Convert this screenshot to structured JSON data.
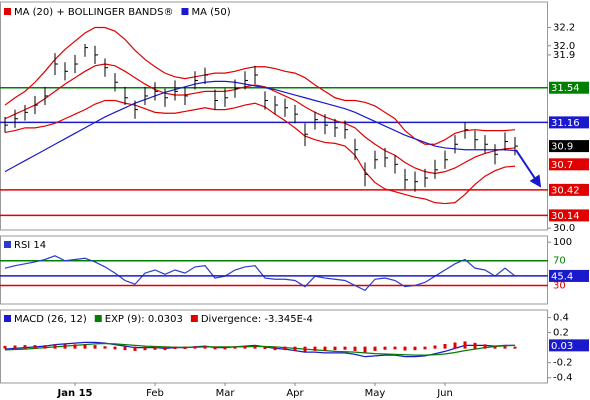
{
  "chart_data": [
    {
      "type": "ohlc",
      "ylim": [
        29.98,
        32.48
      ],
      "yticks": [
        {
          "value": 30.0,
          "label": "30.0"
        },
        31.9,
        {
          "value": 32.0,
          "label": "32.0"
        },
        32.2
      ],
      "bar_color": "#000000",
      "high": [
        31.22,
        31.3,
        31.35,
        31.45,
        31.55,
        31.92,
        31.82,
        31.9,
        32.02,
        32.0,
        31.86,
        31.7,
        31.55,
        31.4,
        31.55,
        31.6,
        31.53,
        31.62,
        31.55,
        31.72,
        31.76,
        31.52,
        31.53,
        31.63,
        31.72,
        31.78,
        31.5,
        31.45,
        31.42,
        31.35,
        31.15,
        31.28,
        31.25,
        31.2,
        31.18,
        30.98,
        30.72,
        30.85,
        30.88,
        30.8,
        30.65,
        30.62,
        30.65,
        30.75,
        30.85,
        31.02,
        31.16,
        31.07,
        31.02,
        30.92,
        31.05,
        31.0
      ],
      "low": [
        31.05,
        31.1,
        31.18,
        31.25,
        31.35,
        31.68,
        31.62,
        31.7,
        31.88,
        31.8,
        31.66,
        31.5,
        31.35,
        31.2,
        31.35,
        31.4,
        31.33,
        31.4,
        31.35,
        31.52,
        31.58,
        31.3,
        31.33,
        31.43,
        31.52,
        31.58,
        31.3,
        31.25,
        31.22,
        31.15,
        30.9,
        31.08,
        31.03,
        31.0,
        30.98,
        30.75,
        30.46,
        30.65,
        30.67,
        30.6,
        30.43,
        30.4,
        30.45,
        30.54,
        30.65,
        30.82,
        30.98,
        30.87,
        30.82,
        30.7,
        30.85,
        30.8
      ],
      "close": [
        31.13,
        31.2,
        31.27,
        31.35,
        31.45,
        31.8,
        31.72,
        31.8,
        31.98,
        31.9,
        31.76,
        31.6,
        31.43,
        31.3,
        31.45,
        31.5,
        31.43,
        31.5,
        31.45,
        31.62,
        31.68,
        31.4,
        31.43,
        31.53,
        31.62,
        31.68,
        31.4,
        31.35,
        31.32,
        31.25,
        31.03,
        31.19,
        31.13,
        31.1,
        31.08,
        30.86,
        30.59,
        30.75,
        30.77,
        30.7,
        30.53,
        30.51,
        30.55,
        30.64,
        30.75,
        30.92,
        31.08,
        30.97,
        30.92,
        30.81,
        30.95,
        30.9
      ],
      "series": [
        {
          "name": "MA (20) + BOLLINGER BANDS®",
          "color": "#e00000",
          "values": [
            31.2,
            31.25,
            31.3,
            31.35,
            31.42,
            31.5,
            31.58,
            31.65,
            31.72,
            31.78,
            31.8,
            31.78,
            31.72,
            31.65,
            31.58,
            31.52,
            31.48,
            31.46,
            31.46,
            31.48,
            31.5,
            31.5,
            31.5,
            31.52,
            31.55,
            31.57,
            31.55,
            31.5,
            31.45,
            31.4,
            31.33,
            31.27,
            31.22,
            31.18,
            31.15,
            31.1,
            31.0,
            30.92,
            30.85,
            30.8,
            30.72,
            30.66,
            30.62,
            30.6,
            30.62,
            30.66,
            30.72,
            30.78,
            30.82,
            30.85,
            30.87,
            30.88
          ]
        },
        {
          "color": "#e00000",
          "values": [
            31.35,
            31.43,
            31.5,
            31.6,
            31.72,
            31.85,
            31.96,
            32.05,
            32.14,
            32.2,
            32.2,
            32.16,
            32.07,
            31.95,
            31.85,
            31.77,
            31.7,
            31.66,
            31.64,
            31.66,
            31.68,
            31.7,
            31.7,
            31.72,
            31.75,
            31.77,
            31.77,
            31.75,
            31.72,
            31.7,
            31.65,
            31.57,
            31.5,
            31.43,
            31.4,
            31.4,
            31.38,
            31.34,
            31.27,
            31.2,
            31.07,
            30.98,
            30.92,
            30.92,
            30.97,
            31.04,
            31.07,
            31.08,
            31.07,
            31.07,
            31.07,
            31.08
          ]
        },
        {
          "color": "#e00000",
          "values": [
            31.05,
            31.07,
            31.1,
            31.1,
            31.12,
            31.15,
            31.2,
            31.25,
            31.3,
            31.36,
            31.4,
            31.4,
            31.37,
            31.35,
            31.31,
            31.27,
            31.26,
            31.26,
            31.28,
            31.3,
            31.32,
            31.3,
            31.3,
            31.32,
            31.35,
            31.37,
            31.33,
            31.25,
            31.18,
            31.1,
            31.01,
            30.97,
            30.94,
            30.93,
            30.9,
            30.8,
            30.62,
            30.5,
            30.43,
            30.4,
            30.37,
            30.34,
            30.32,
            30.28,
            30.27,
            30.28,
            30.37,
            30.48,
            30.57,
            30.63,
            30.67,
            30.68
          ]
        },
        {
          "name": "MA (50)",
          "color": "#1a1acc",
          "values": [
            30.62,
            30.68,
            30.74,
            30.8,
            30.86,
            30.92,
            30.98,
            31.04,
            31.1,
            31.16,
            31.22,
            31.27,
            31.32,
            31.37,
            31.41,
            31.45,
            31.49,
            31.52,
            31.55,
            31.58,
            31.6,
            31.61,
            31.61,
            31.6,
            31.58,
            31.56,
            31.54,
            31.52,
            31.49,
            31.46,
            31.43,
            31.4,
            31.37,
            31.34,
            31.31,
            31.27,
            31.22,
            31.17,
            31.12,
            31.07,
            31.02,
            30.98,
            30.94,
            30.9,
            30.88,
            30.87,
            30.86,
            30.86,
            30.86,
            30.86,
            30.86,
            30.85
          ]
        }
      ],
      "levels": [
        {
          "value": 31.54,
          "color": "#008000"
        },
        {
          "value": 31.16,
          "color": "#1a1acc"
        },
        {
          "value": 30.42,
          "color": "#e00000"
        },
        {
          "value": 30.14,
          "color": "#e00000"
        }
      ],
      "tags": [
        {
          "value": 30.9,
          "color": "#000000"
        },
        {
          "value": 30.7,
          "color": "#e00000"
        }
      ]
    },
    {
      "type": "line",
      "title": "RSI 14",
      "color": "#2a3ccc",
      "ylim": [
        0,
        110
      ],
      "yticks": [
        100
      ],
      "values": [
        58,
        62,
        65,
        68,
        72,
        78,
        70,
        72,
        74,
        68,
        60,
        50,
        38,
        32,
        50,
        55,
        48,
        55,
        50,
        60,
        62,
        42,
        45,
        55,
        60,
        62,
        42,
        40,
        40,
        38,
        28,
        45,
        42,
        40,
        38,
        30,
        22,
        40,
        42,
        38,
        28,
        30,
        35,
        45,
        55,
        65,
        72,
        58,
        55,
        45,
        58,
        45.4
      ],
      "levels": [
        {
          "value": 70,
          "color": "#008000"
        },
        {
          "value": 30,
          "color": "#e00000"
        }
      ]
    },
    {
      "type": "macd",
      "ylim": [
        -0.47,
        0.5
      ],
      "yticks": [
        0.4,
        0.2,
        -0.2,
        -0.4
      ],
      "categories": [
        null,
        null,
        null,
        null,
        null,
        null,
        null,
        "Jan 15",
        null,
        null,
        null,
        null,
        null,
        null,
        null,
        "Feb",
        null,
        null,
        null,
        null,
        null,
        null,
        "Mar",
        null,
        null,
        null,
        null,
        null,
        null,
        "Apr",
        null,
        null,
        null,
        null,
        null,
        null,
        null,
        "May",
        null,
        null,
        null,
        null,
        null,
        null,
        "Jun",
        null,
        null,
        null,
        null,
        null,
        null,
        null
      ],
      "series": [
        {
          "name": "MACD (26, 12)",
          "color": "#1a1acc",
          "values": [
            -0.02,
            -0.01,
            0.0,
            0.01,
            0.02,
            0.04,
            0.05,
            0.06,
            0.07,
            0.07,
            0.06,
            0.04,
            0.02,
            0.0,
            0.0,
            0.0,
            -0.01,
            0.0,
            0.0,
            0.01,
            0.02,
            0.0,
            0.0,
            0.01,
            0.02,
            0.03,
            0.01,
            -0.01,
            -0.02,
            -0.04,
            -0.06,
            -0.06,
            -0.07,
            -0.07,
            -0.07,
            -0.09,
            -0.12,
            -0.11,
            -0.1,
            -0.1,
            -0.12,
            -0.12,
            -0.11,
            -0.08,
            -0.05,
            -0.01,
            0.03,
            0.03,
            0.03,
            0.02,
            0.03,
            0.03
          ]
        },
        {
          "name": "EXP (9): 0.0303",
          "color": "#008000",
          "values": [
            -0.03,
            -0.025,
            -0.02,
            -0.01,
            0.0,
            0.01,
            0.02,
            0.03,
            0.04,
            0.05,
            0.055,
            0.05,
            0.04,
            0.03,
            0.02,
            0.015,
            0.01,
            0.005,
            0.005,
            0.005,
            0.01,
            0.01,
            0.01,
            0.01,
            0.012,
            0.015,
            0.015,
            0.01,
            0.0,
            -0.01,
            -0.02,
            -0.03,
            -0.04,
            -0.05,
            -0.055,
            -0.06,
            -0.07,
            -0.08,
            -0.085,
            -0.09,
            -0.095,
            -0.1,
            -0.1,
            -0.095,
            -0.085,
            -0.065,
            -0.04,
            -0.02,
            0.0,
            0.015,
            0.025,
            0.0303
          ]
        },
        {
          "name": "Divergence: -3.345E-4",
          "color": "#e00000",
          "type": "bar",
          "values": [
            0.01,
            0.015,
            0.02,
            0.02,
            0.02,
            0.03,
            0.03,
            0.03,
            0.03,
            0.02,
            0.005,
            -0.01,
            -0.02,
            -0.03,
            -0.02,
            -0.015,
            -0.02,
            -0.005,
            -0.005,
            0.005,
            0.01,
            -0.01,
            -0.01,
            0,
            0.008,
            0.015,
            -0.005,
            -0.02,
            -0.02,
            -0.03,
            -0.04,
            -0.03,
            -0.03,
            -0.02,
            -0.015,
            -0.03,
            -0.05,
            -0.03,
            -0.015,
            -0.01,
            -0.025,
            -0.02,
            -0.01,
            0.015,
            0.035,
            0.055,
            0.07,
            0.05,
            0.03,
            0.005,
            0.005,
            -0.0003345
          ]
        }
      ]
    }
  ]
}
